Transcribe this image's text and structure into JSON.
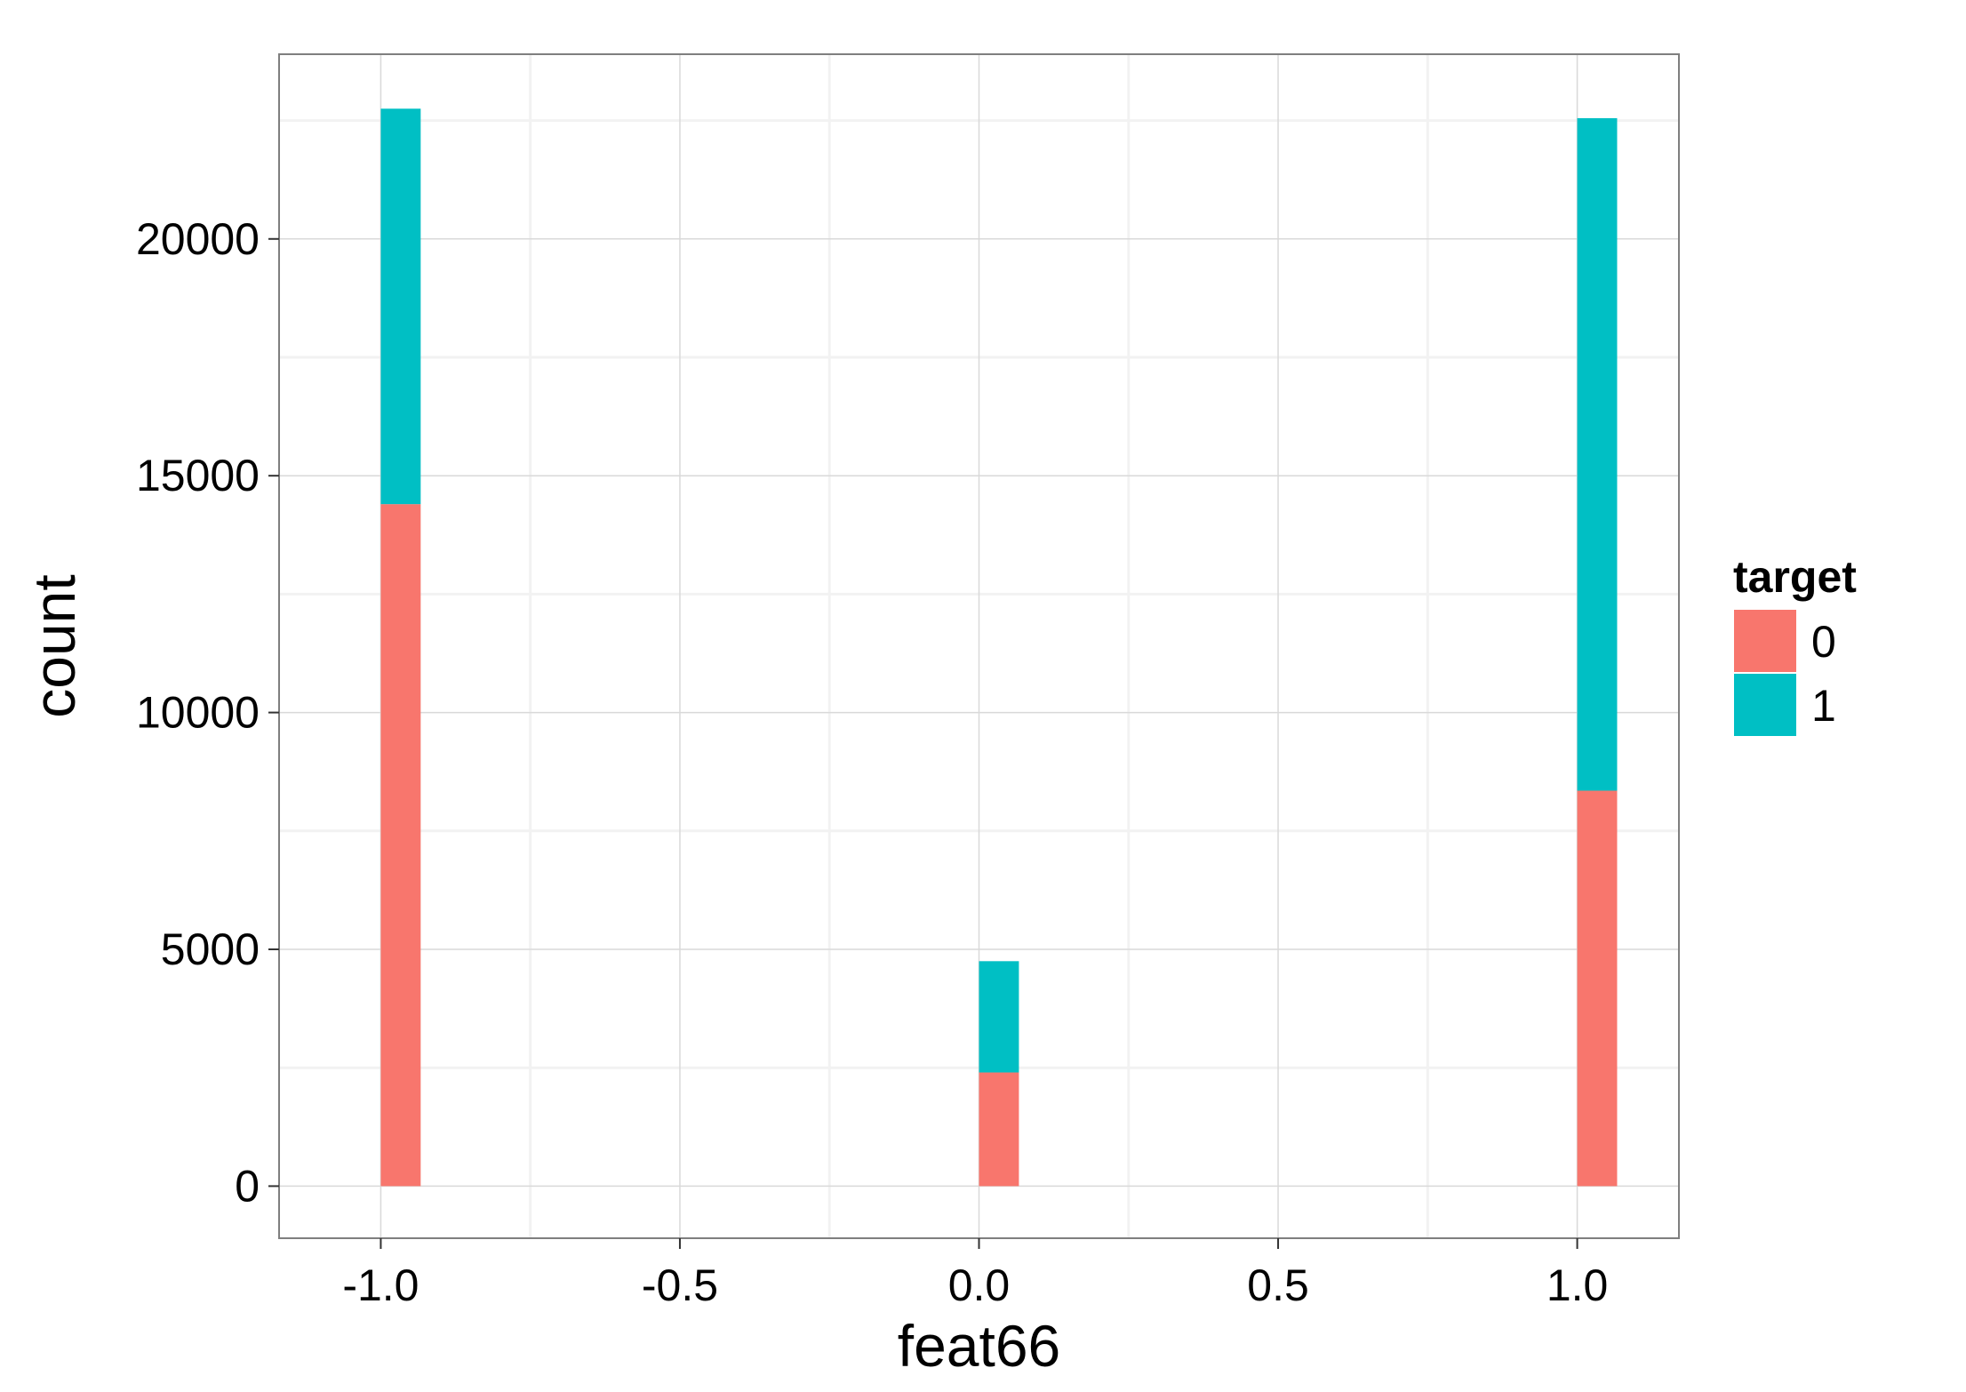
{
  "chart_data": {
    "type": "bar",
    "stacked": true,
    "title": "",
    "xlabel": "feat66",
    "ylabel": "count",
    "x": [
      -1.0,
      0.0,
      1.0
    ],
    "bin_width": 0.0667,
    "series": [
      {
        "name": "0",
        "values": [
          14400,
          2400,
          8350
        ],
        "color": "#F8766D"
      },
      {
        "name": "1",
        "values": [
          8350,
          2350,
          14200
        ],
        "color": "#00BFC4"
      }
    ],
    "xlim": [
      -1.17,
      1.17
    ],
    "ylim": [
      -1100,
      23900
    ],
    "x_ticks": [
      -1.0,
      -0.5,
      0.0,
      0.5,
      1.0
    ],
    "x_tick_labels": [
      "-1.0",
      "-0.5",
      "0.0",
      "0.5",
      "1.0"
    ],
    "y_ticks": [
      0,
      5000,
      10000,
      15000,
      20000
    ],
    "y_tick_labels": [
      "0",
      "5000",
      "10000",
      "15000",
      "20000"
    ],
    "legend": {
      "title": "target",
      "entries": [
        "0",
        "1"
      ],
      "position": "right"
    },
    "grid": true,
    "panel_border_color": "#7F7F7F",
    "grid_major_color": "#D9D9D9",
    "grid_minor_color": "#F2F2F2"
  }
}
